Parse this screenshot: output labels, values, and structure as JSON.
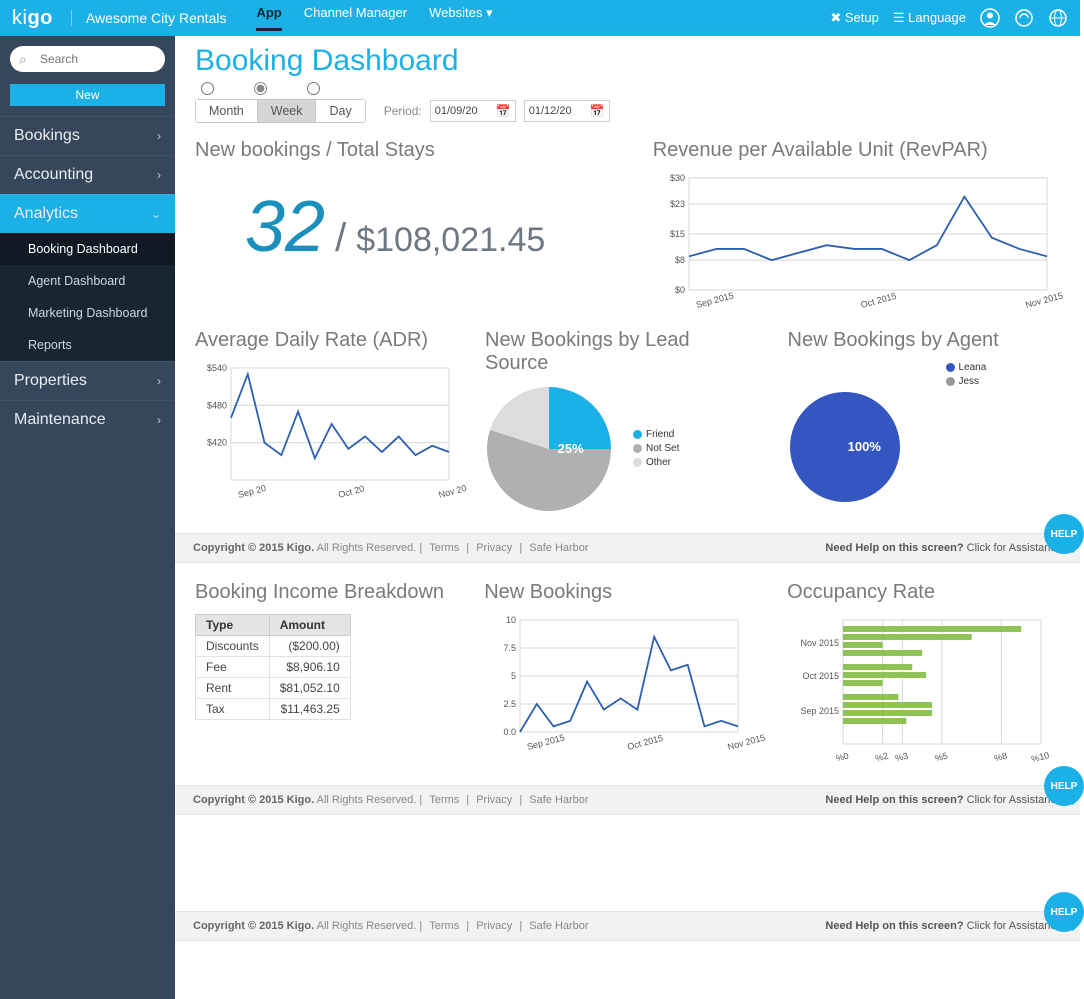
{
  "brand": {
    "name_a": "ki",
    "name_b": "go",
    "company": "Awesome City Rentals"
  },
  "topnav": {
    "items": [
      "App",
      "Channel Manager",
      "Websites"
    ],
    "active": 0,
    "dropdown_idx": 2
  },
  "topright": {
    "setup": "Setup",
    "language": "Language"
  },
  "sidebar": {
    "search_placeholder": "Search",
    "new_label": "New",
    "cats": [
      {
        "label": "Bookings",
        "open": false
      },
      {
        "label": "Accounting",
        "open": false
      },
      {
        "label": "Analytics",
        "open": true,
        "sub": [
          {
            "label": "Booking Dashboard",
            "sel": true
          },
          {
            "label": "Agent Dashboard"
          },
          {
            "label": "Marketing Dashboard"
          },
          {
            "label": "Reports"
          }
        ]
      },
      {
        "label": "Properties",
        "open": false
      },
      {
        "label": "Maintenance",
        "open": false
      }
    ]
  },
  "page": {
    "title": "Booking Dashboard",
    "view_modes": [
      "Month",
      "Week",
      "Day"
    ],
    "view_selected": 1,
    "period_label": "Period:",
    "date_from": "01/09/20",
    "date_to": "01/12/20"
  },
  "kpi": {
    "title": "New bookings / Total Stays",
    "count": "32",
    "sep": "/",
    "total": "$108,021.45"
  },
  "revpar": {
    "title": "Revenue per Available Unit (RevPAR)",
    "type": "line",
    "ylim": [
      0,
      30
    ],
    "yticks": [
      0,
      8,
      15,
      23,
      30
    ],
    "ytick_labels": [
      "$0",
      "$8",
      "$15",
      "$23",
      "$30"
    ],
    "x_labels": [
      "Sep 2015",
      "Oct 2015",
      "Nov 2015"
    ],
    "values": [
      9,
      11,
      11,
      8,
      10,
      12,
      11,
      11,
      8,
      12,
      25,
      14,
      11,
      9
    ],
    "line_color": "#2b5fb0",
    "grid_color": "#d7d7d7",
    "bg": "#ffffff",
    "label_fontsize": 9
  },
  "adr": {
    "title": "Average Daily Rate (ADR)",
    "type": "line",
    "ylim": [
      360,
      540
    ],
    "yticks": [
      420,
      480,
      540
    ],
    "ytick_labels": [
      "$420",
      "$480",
      "$540"
    ],
    "x_labels": [
      "Sep 20",
      "Oct 20",
      "Nov 20"
    ],
    "values": [
      460,
      530,
      420,
      400,
      470,
      395,
      450,
      410,
      430,
      405,
      430,
      400,
      415,
      405
    ],
    "line_color": "#2b5fb0",
    "grid_color": "#d7d7d7"
  },
  "leadsource": {
    "title": "New Bookings by Lead Source",
    "type": "pie",
    "slices": [
      {
        "label": "Friend",
        "value": 25,
        "color": "#1cb1e6"
      },
      {
        "label": "Not Set",
        "value": 55,
        "color": "#b0b0b0"
      },
      {
        "label": "Other",
        "value": 20,
        "color": "#dcdcdc"
      }
    ],
    "center_label": "25%",
    "center_label_color": "#ffffff"
  },
  "byagent": {
    "title": "New Bookings by Agent",
    "type": "pie",
    "slices": [
      {
        "label": "Leana",
        "value": 100,
        "color": "#3356c0"
      }
    ],
    "secondary_label": "Jess",
    "center_label": "100%",
    "center_label_color": "#ffffff"
  },
  "breakdown": {
    "title": "Booking Income Breakdown",
    "columns": [
      "Type",
      "Amount"
    ],
    "rows": [
      [
        "Discounts",
        "($200.00)"
      ],
      [
        "Fee",
        "$8,906.10"
      ],
      [
        "Rent",
        "$81,052.10"
      ],
      [
        "Tax",
        "$11,463.25"
      ]
    ],
    "header_bg": "#e4e4e4"
  },
  "newbookings": {
    "title": "New Bookings",
    "type": "line",
    "ylim": [
      0,
      10
    ],
    "yticks": [
      0,
      2.5,
      5,
      7.5,
      10
    ],
    "ytick_labels": [
      "0.0",
      "2.5",
      "5",
      "7.5",
      "10"
    ],
    "x_labels": [
      "Sep 2015",
      "Oct 2015",
      "Nov 2015"
    ],
    "values": [
      0,
      2.5,
      0.5,
      1,
      4.5,
      2,
      3,
      2,
      8.5,
      5.5,
      6,
      0.5,
      1,
      0.5
    ],
    "line_color": "#2b5fb0",
    "grid_color": "#d7d7d7"
  },
  "occupancy": {
    "title": "Occupancy Rate",
    "type": "hbar",
    "xlim": [
      0,
      10
    ],
    "xticks": [
      0,
      2,
      3,
      5,
      8,
      10
    ],
    "xtick_labels": [
      "%0",
      "%2",
      "%3",
      "%5",
      "%8",
      "%10"
    ],
    "groups": [
      {
        "label": "Nov 2015",
        "bars": [
          9.0,
          6.5,
          2.0,
          4.0
        ]
      },
      {
        "label": "Oct 2015",
        "bars": [
          3.5,
          4.2,
          2.0
        ]
      },
      {
        "label": "Sep 2015",
        "bars": [
          2.8,
          4.5,
          4.5,
          3.2
        ]
      }
    ],
    "bar_color": "#8fc257",
    "grid_color": "#d7d7d7"
  },
  "footer": {
    "copyright": "Copyright © 2015 Kigo.",
    "rights": "All Rights Reserved.",
    "links": [
      "Terms",
      "Privacy",
      "Safe Harbor"
    ],
    "help_q": "Need Help on this screen?",
    "help_a": "Click for Assistance",
    "bubble": "HELP"
  }
}
